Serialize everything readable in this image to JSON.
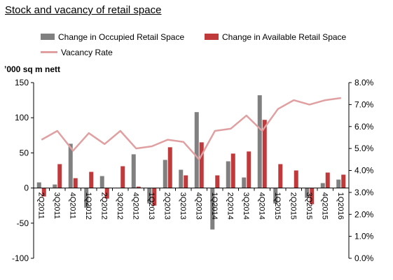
{
  "chart_data": {
    "type": "bar",
    "title": "Stock and vacancy of retail space",
    "left_axis_unit": "’000 sq m nett",
    "categories": [
      "2Q2011",
      "3Q2011",
      "4Q2011",
      "1Q2012",
      "2Q2012",
      "3Q2012",
      "4Q2012",
      "1Q2013",
      "2Q2013",
      "3Q2013",
      "4Q2013",
      "1Q2014",
      "2Q2014",
      "3Q2014",
      "4Q2014",
      "1Q2015",
      "2Q2015",
      "3Q2015",
      "4Q2015",
      "1Q2016"
    ],
    "series": [
      {
        "name": "Change in Occupied Retail Space",
        "type": "bar",
        "axis": "left",
        "color": "#808080",
        "values": [
          8,
          5,
          63,
          -28,
          17,
          0,
          48,
          -22,
          40,
          26,
          108,
          -59,
          38,
          15,
          132,
          -22,
          0,
          -14,
          7,
          12
        ]
      },
      {
        "name": "Change in Available Retail Space",
        "type": "bar",
        "axis": "left",
        "color": "#c0393b",
        "values": [
          -12,
          34,
          14,
          23,
          -15,
          31,
          2,
          -25,
          58,
          18,
          65,
          18,
          49,
          52,
          97,
          34,
          25,
          -23,
          22,
          19
        ]
      },
      {
        "name": "Vacancy Rate",
        "type": "line",
        "axis": "right",
        "color": "#e0a0a2",
        "values": [
          5.4,
          5.8,
          4.9,
          5.7,
          5.2,
          5.8,
          5.0,
          5.1,
          5.4,
          5.3,
          4.5,
          5.8,
          5.9,
          6.5,
          5.8,
          6.8,
          7.2,
          7.0,
          7.2,
          7.3
        ]
      }
    ],
    "y_left": {
      "ylim": [
        -100,
        150
      ],
      "ticks": [
        "-100",
        "-50",
        "0",
        "50",
        "100",
        "150"
      ],
      "tick_values": [
        -100,
        -50,
        0,
        50,
        100,
        150
      ]
    },
    "y_right": {
      "ylim": [
        0,
        8
      ],
      "ticks": [
        "0.0%",
        "1.0%",
        "2.0%",
        "3.0%",
        "4.0%",
        "5.0%",
        "6.0%",
        "7.0%",
        "8.0%"
      ],
      "tick_values": [
        0,
        1,
        2,
        3,
        4,
        5,
        6,
        7,
        8
      ]
    },
    "grid": false,
    "legend_position": "top"
  }
}
